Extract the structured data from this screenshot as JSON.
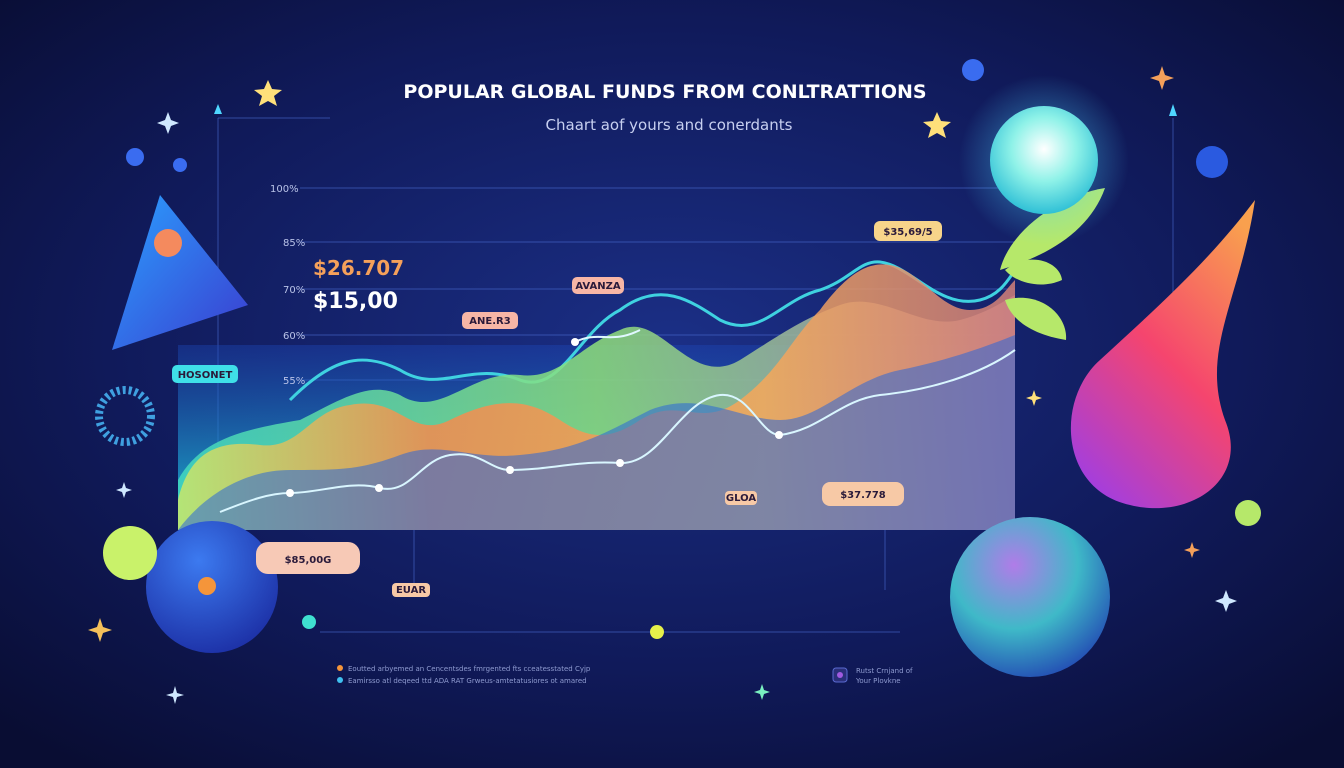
{
  "header": {
    "title": "POPULAR GLOBAL FUNDS FROM CONLTRATTIONS",
    "subtitle": "Chaart aof yours and conerdants"
  },
  "axis_labels": [
    "100%",
    "85%",
    "70%",
    "60%",
    "55%"
  ],
  "highlights": [
    "$26.707",
    "$15,00"
  ],
  "callouts": [
    "$35,69/5",
    "AVANZA",
    "ANE.R3",
    "HOSONET",
    "$37.778",
    "GLOA",
    "$85,00G",
    "EUAR"
  ],
  "legend": [
    "Eoutted arbyemed an Cencentsdes fmrgented fts cceatesstated Cyjp",
    "Eamirsso atl deqeed ttd ADA RAT Grweus-amtetatusiores ot amared"
  ],
  "note": [
    "Rutst Crnjand of",
    "Your Plovkne"
  ]
}
